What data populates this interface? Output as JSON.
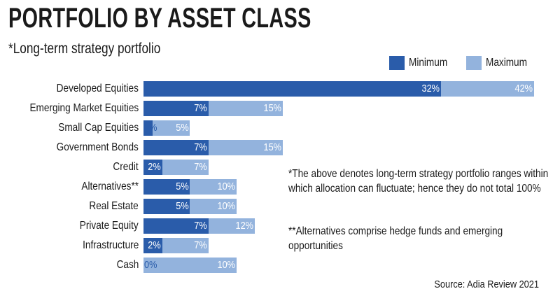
{
  "chart_data": {
    "type": "bar",
    "title": "PORTFOLIO BY ASSET CLASS",
    "subtitle": "*Long-term strategy portfolio",
    "categories": [
      "Developed Equities",
      "Emerging Market Equities",
      "Small Cap Equities",
      "Government Bonds",
      "Credit",
      "Alternatives**",
      "Real Estate",
      "Private Equity",
      "Infrastructure",
      "Cash"
    ],
    "series": [
      {
        "name": "Minimum",
        "color": "#2a5caa",
        "values": [
          32,
          7,
          1,
          7,
          2,
          5,
          5,
          7,
          2,
          0
        ],
        "value_labels": [
          "32%",
          "7%",
          "1%",
          "7%",
          "2%",
          "5%",
          "5%",
          "7%",
          "2%",
          "0%"
        ]
      },
      {
        "name": "Maximum",
        "color": "#93b3dd",
        "values": [
          42,
          15,
          5,
          15,
          7,
          10,
          10,
          12,
          7,
          10
        ],
        "value_labels": [
          "42%",
          "15%",
          "5%",
          "15%",
          "7%",
          "10%",
          "10%",
          "12%",
          "7%",
          "10%"
        ]
      }
    ],
    "xlim": [
      0,
      42
    ],
    "annotations": [
      "*The above denotes long-term strategy portfolio ranges within which allocation can fluctuate; hence they do not total 100%",
      "**Alternatives comprise hedge funds and emerging opportunities"
    ],
    "source": "Source: Adia Review 2021"
  }
}
